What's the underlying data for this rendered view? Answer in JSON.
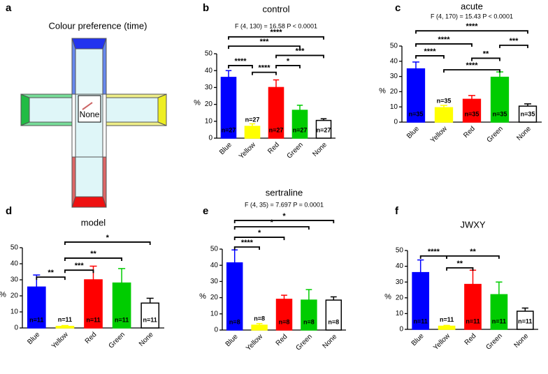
{
  "diagram": {
    "label": "a",
    "title": "Colour preference (time)",
    "center_label": "None"
  },
  "chart_data": [
    {
      "type": "bar",
      "label": "b",
      "title": "control",
      "subtitle": "F (4, 130) = 16.58  P < 0.0001",
      "ylabel": "%",
      "categories": [
        "Blue",
        "Yellow",
        "Red",
        "Green",
        "None"
      ],
      "values": [
        36,
        7,
        30,
        16.5,
        10.5
      ],
      "errors": [
        4,
        1.5,
        4.5,
        3,
        1
      ],
      "n_labels": [
        "n=27",
        "n=27",
        "n=27",
        "n=27",
        "n=27"
      ],
      "colors": [
        "#0000ff",
        "#ffff00",
        "#ff0000",
        "#00cc00",
        "#ffffff"
      ],
      "ylim": [
        0,
        50
      ],
      "yticks": [
        0,
        10,
        20,
        30,
        40,
        50
      ],
      "comparisons": [
        {
          "from": "Blue",
          "to": "None",
          "label": "****",
          "y": 60
        },
        {
          "from": "Blue",
          "to": "Green",
          "label": "***",
          "y": 54.5
        },
        {
          "from": "Red",
          "to": "None",
          "label": "***",
          "y": 49
        },
        {
          "from": "Blue",
          "to": "Yellow",
          "label": "****",
          "y": 43
        },
        {
          "from": "Red",
          "to": "Green",
          "label": "*",
          "y": 43
        },
        {
          "from": "Yellow",
          "to": "Red",
          "label": "****",
          "y": 39
        }
      ]
    },
    {
      "type": "bar",
      "label": "c",
      "title": "acute",
      "subtitle": "F (4, 170) = 15.43  P < 0.0001",
      "ylabel": "%",
      "categories": [
        "Blue",
        "Yellow",
        "Red",
        "Green",
        "None"
      ],
      "values": [
        35,
        9.5,
        15,
        29.5,
        10.5
      ],
      "errors": [
        4.5,
        1.5,
        2.5,
        3.5,
        1.5
      ],
      "n_labels": [
        "n=35",
        "n=35",
        "n=35",
        "n=35",
        "n=35"
      ],
      "colors": [
        "#0000ff",
        "#ffff00",
        "#ff0000",
        "#00cc00",
        "#ffffff"
      ],
      "ylim": [
        0,
        50
      ],
      "yticks": [
        0,
        10,
        20,
        30,
        40,
        50
      ],
      "comparisons": [
        {
          "from": "Blue",
          "to": "None",
          "label": "****",
          "y": 60
        },
        {
          "from": "Blue",
          "to": "Red",
          "label": "****",
          "y": 51.4
        },
        {
          "from": "Green",
          "to": "None",
          "label": "***",
          "y": 50.5
        },
        {
          "from": "Blue",
          "to": "Yellow",
          "label": "****",
          "y": 43.6
        },
        {
          "from": "Red",
          "to": "Green",
          "label": "**",
          "y": 42
        },
        {
          "from": "Yellow",
          "to": "Green",
          "label": "****",
          "y": 34.4
        }
      ]
    },
    {
      "type": "bar",
      "label": "d",
      "title": "model",
      "ylabel": "%",
      "categories": [
        "Blue",
        "Yellow",
        "Red",
        "Green",
        "None"
      ],
      "values": [
        25.5,
        1,
        30,
        28,
        15.5
      ],
      "errors": [
        7.5,
        0.5,
        8.5,
        9,
        3
      ],
      "n_labels": [
        "n=11",
        "n=11",
        "n=11",
        "n=11",
        "n=11"
      ],
      "colors": [
        "#0000ff",
        "#ffff00",
        "#ff0000",
        "#00cc00",
        "#ffffff"
      ],
      "ylim": [
        0,
        50
      ],
      "yticks": [
        0,
        10,
        20,
        30,
        40,
        50
      ],
      "comparisons": [
        {
          "from": "Yellow",
          "to": "None",
          "label": "*",
          "y": 53.5
        },
        {
          "from": "Yellow",
          "to": "Green",
          "label": "**",
          "y": 43.5
        },
        {
          "from": "Yellow",
          "to": "Red",
          "label": "***",
          "y": 36
        },
        {
          "from": "Blue",
          "to": "Yellow",
          "label": "**",
          "y": 31.7
        }
      ]
    },
    {
      "type": "bar",
      "label": "e",
      "title": "sertraline",
      "subtitle": "F (4, 35) = 7.697    P = 0.0001",
      "ylabel": "%",
      "categories": [
        "Blue",
        "Yellow",
        "Red",
        "Green",
        "None"
      ],
      "values": [
        41.5,
        3,
        19,
        18.5,
        18.5
      ],
      "errors": [
        8,
        1,
        2.5,
        6.5,
        2
      ],
      "n_labels": [
        "n=8",
        "n=8",
        "n=8",
        "n=8",
        "n=8"
      ],
      "colors": [
        "#0000ff",
        "#ffff00",
        "#ff0000",
        "#00cc00",
        "#ffffff"
      ],
      "ylim": [
        0,
        50
      ],
      "yticks": [
        0,
        10,
        20,
        30,
        40,
        50
      ],
      "comparisons": [
        {
          "from": "Blue",
          "to": "None",
          "label": "*",
          "y": 67.7
        },
        {
          "from": "Blue",
          "to": "Green",
          "label": "*",
          "y": 63.8
        },
        {
          "from": "Blue",
          "to": "Red",
          "label": "*",
          "y": 57.3
        },
        {
          "from": "Blue",
          "to": "Yellow",
          "label": "****",
          "y": 51.3
        }
      ]
    },
    {
      "type": "bar",
      "label": "f",
      "title": "JWXY",
      "ylabel": "%",
      "categories": [
        "Blue",
        "Yellow",
        "Red",
        "Green",
        "None"
      ],
      "values": [
        36,
        2,
        28.5,
        22,
        11.5
      ],
      "errors": [
        8,
        0.5,
        9,
        8,
        2
      ],
      "n_labels": [
        "n=11",
        "n=11",
        "n=11",
        "n=11",
        "n=11"
      ],
      "colors": [
        "#0000ff",
        "#ffff00",
        "#ff0000",
        "#00cc00",
        "#ffffff"
      ],
      "ylim": [
        0,
        50
      ],
      "yticks": [
        0,
        10,
        20,
        30,
        40,
        50
      ],
      "comparisons": [
        {
          "from": "Blue",
          "to": "Yellow",
          "label": "****",
          "y": 46.5
        },
        {
          "from": "Yellow",
          "to": "Green",
          "label": "**",
          "y": 46.5
        },
        {
          "from": "Yellow",
          "to": "Red",
          "label": "**",
          "y": 39
        }
      ]
    }
  ]
}
